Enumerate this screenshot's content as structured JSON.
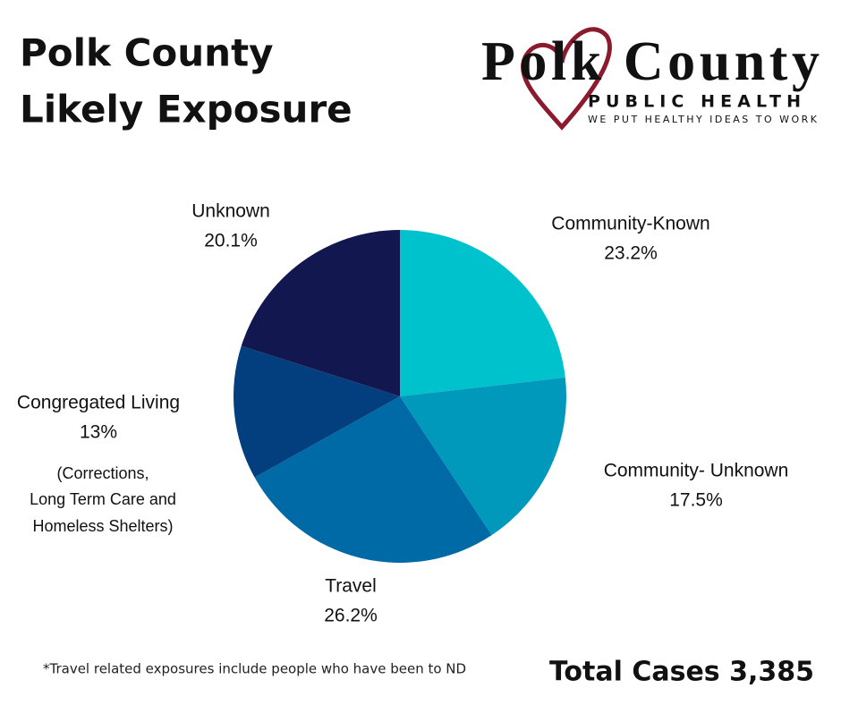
{
  "logo": {
    "name": "Polk County",
    "subtitle": "PUBLIC HEALTH",
    "tagline": "WE PUT HEALTHY IDEAS TO WORK"
  },
  "chart_data": {
    "type": "pie",
    "title": [
      "Polk County",
      "Likely Exposure"
    ],
    "categories": [
      "Community-Known",
      "Community- Unknown",
      "Travel",
      "Congregated Living",
      "Unknown"
    ],
    "values": [
      23.2,
      17.5,
      26.2,
      13,
      20.1
    ],
    "value_labels": [
      "23.2%",
      "17.5%",
      "26.2%",
      "13%",
      "20.1%"
    ],
    "colors": [
      "#00c2cc",
      "#0099bb",
      "#006aa6",
      "#033f7f",
      "#12184f"
    ],
    "annotations": {
      "congregated_note": [
        "(Corrections,",
        "Long Term Care and",
        "Homeless Shelters)"
      ],
      "footnote": "*Travel related exposures include people who have been to ND",
      "total": "Total Cases 3,385"
    }
  }
}
